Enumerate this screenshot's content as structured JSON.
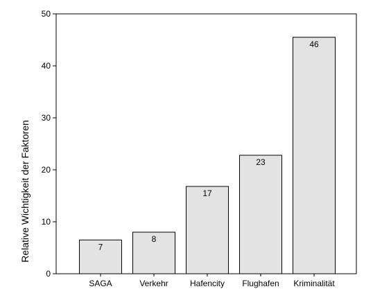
{
  "chart_data": {
    "type": "bar",
    "title": "",
    "xlabel": "",
    "ylabel": "Relative Wichtigkeit der Faktoren",
    "categories": [
      "SAGA",
      "Verkehr",
      "Hafencity",
      "Flughafen",
      "Kriminalität"
    ],
    "values": [
      6.5,
      8,
      16.8,
      22.8,
      45.5
    ],
    "data_labels": [
      "7",
      "8",
      "17",
      "23",
      "46"
    ],
    "ylim": [
      0,
      50
    ],
    "yticks": [
      0,
      10,
      20,
      30,
      40,
      50
    ],
    "grid": false,
    "legend": "none",
    "colors": {
      "bar_fill": "#e3e3e3",
      "bar_stroke": "#000000",
      "axis": "#000000"
    }
  }
}
